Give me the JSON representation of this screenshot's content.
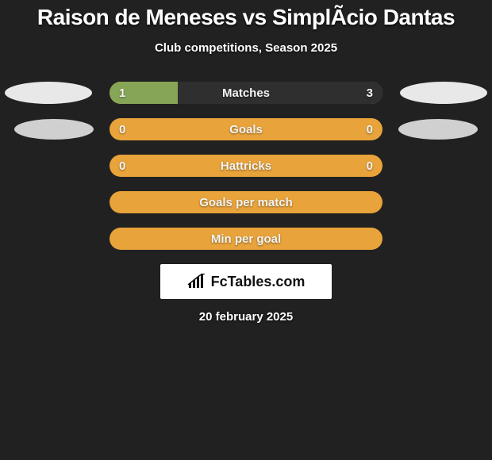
{
  "title": "Raison de Meneses vs SimplÃ­cio Dantas",
  "subtitle": "Club competitions, Season 2025",
  "date": "20 february 2025",
  "brand": "FcTables.com",
  "colors": {
    "track": "#e8a33b",
    "left": "#87a556",
    "right": "#2f2f2f",
    "avatar1": "#e8e8e8",
    "avatar2": "#d0d0d0"
  },
  "rows": [
    {
      "label": "Matches",
      "left_val": "1",
      "right_val": "3",
      "left_pct": 25,
      "right_pct": 75,
      "show_values": true,
      "show_avatars": true,
      "avatar_small": false
    },
    {
      "label": "Goals",
      "left_val": "0",
      "right_val": "0",
      "left_pct": 0,
      "right_pct": 0,
      "show_values": true,
      "show_avatars": true,
      "avatar_small": true
    },
    {
      "label": "Hattricks",
      "left_val": "0",
      "right_val": "0",
      "left_pct": 0,
      "right_pct": 0,
      "show_values": true,
      "show_avatars": false,
      "avatar_small": true
    },
    {
      "label": "Goals per match",
      "left_val": "",
      "right_val": "",
      "left_pct": 0,
      "right_pct": 0,
      "show_values": false,
      "show_avatars": false,
      "avatar_small": true
    },
    {
      "label": "Min per goal",
      "left_val": "",
      "right_val": "",
      "left_pct": 0,
      "right_pct": 0,
      "show_values": false,
      "show_avatars": false,
      "avatar_small": true
    }
  ]
}
